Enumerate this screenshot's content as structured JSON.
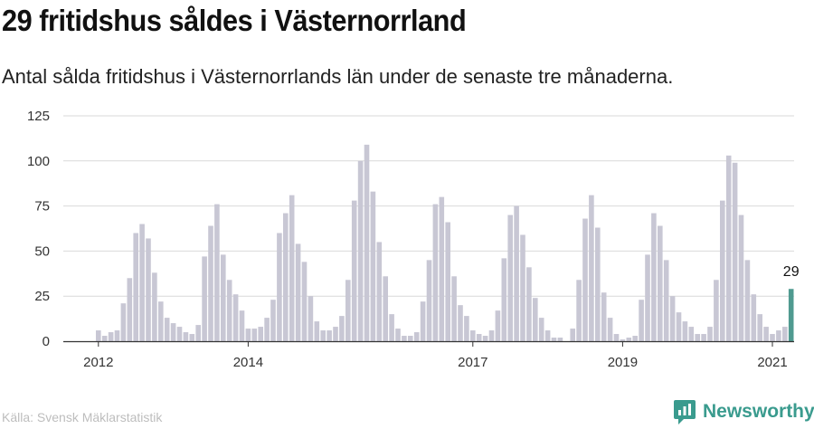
{
  "header": {
    "title": "29 fritidshus såldes i Västernorrland",
    "subtitle": "Antal sålda fritidshus i Västernorrlands län under de senaste tre månaderna."
  },
  "footer": {
    "source": "Källa: Svensk Mäklarstatistik",
    "brand": "Newsworthy",
    "brand_icon": "newsworthy-logo-icon"
  },
  "colors": {
    "bar": "#c8c7d4",
    "highlight": "#4f9a90",
    "grid": "#d9d9d9",
    "axis": "#333333",
    "brand": "#3a9b8e"
  },
  "chart_data": {
    "type": "bar",
    "x_start": "2012-01",
    "frequency": "monthly",
    "x_ticks": [
      {
        "label": "2012",
        "month": "2012-01"
      },
      {
        "label": "2014",
        "month": "2014-01"
      },
      {
        "label": "2017",
        "month": "2017-01"
      },
      {
        "label": "2019",
        "month": "2019-01"
      },
      {
        "label": "2021",
        "month": "2021-01"
      }
    ],
    "y_ticks": [
      0,
      25,
      50,
      75,
      100,
      125
    ],
    "ylim": [
      0,
      125
    ],
    "grid": true,
    "values": [
      6,
      3,
      5,
      6,
      21,
      35,
      60,
      65,
      57,
      38,
      22,
      13,
      10,
      8,
      5,
      4,
      9,
      47,
      64,
      76,
      48,
      34,
      26,
      17,
      7,
      7,
      8,
      13,
      23,
      60,
      71,
      81,
      54,
      44,
      25,
      11,
      6,
      6,
      8,
      14,
      34,
      78,
      100,
      109,
      83,
      55,
      36,
      15,
      7,
      3,
      3,
      5,
      22,
      45,
      76,
      80,
      66,
      36,
      20,
      14,
      6,
      4,
      3,
      6,
      17,
      46,
      70,
      75,
      59,
      41,
      24,
      13,
      6,
      2,
      2,
      0,
      7,
      34,
      68,
      81,
      63,
      27,
      13,
      4,
      1,
      2,
      3,
      23,
      48,
      71,
      64,
      45,
      25,
      16,
      11,
      8,
      4,
      4,
      8,
      34,
      78,
      103,
      99,
      70,
      45,
      26,
      15,
      8,
      4,
      6,
      8,
      29
    ],
    "highlight_last": true,
    "highlight_label": "29"
  }
}
